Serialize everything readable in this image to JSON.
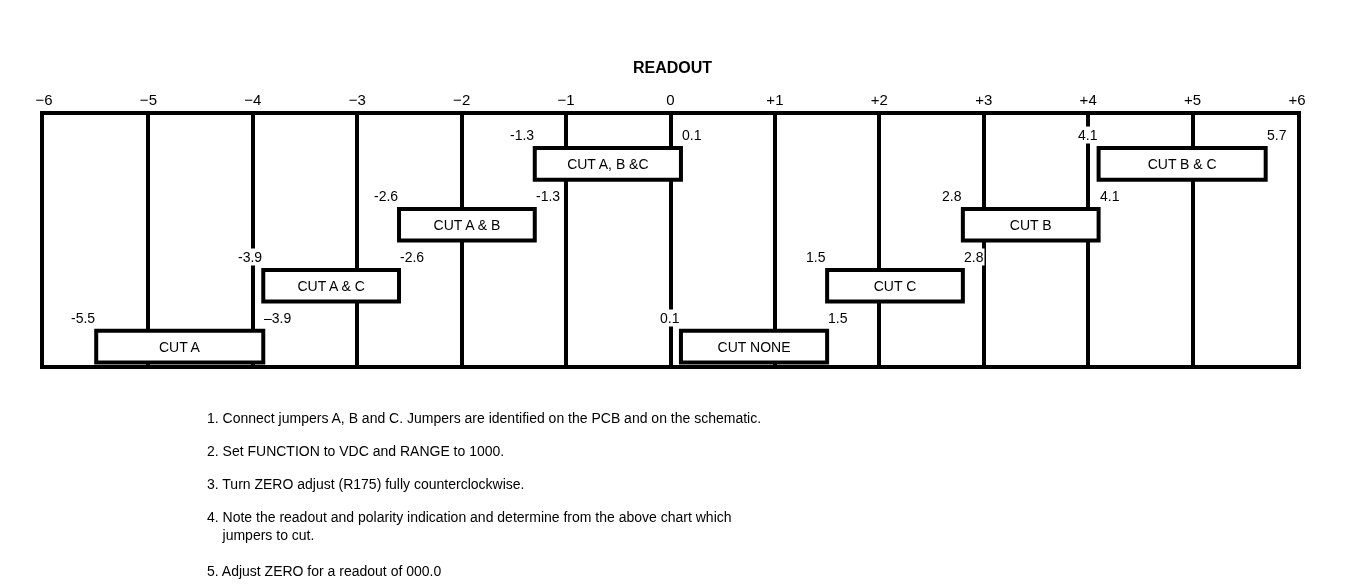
{
  "chart_data": {
    "type": "bar",
    "orientation": "horizontal",
    "title": "READOUT",
    "categories": [
      null,
      null,
      null,
      null
    ],
    "series": [
      {
        "color": "#ffffff",
        "base": [
          -1.3,
          -2.6,
          -3.9,
          -5.5
        ],
        "values": [
          1.4,
          1.3,
          1.3,
          1.6
        ],
        "value_labels": [
          "CUT A, B &C",
          "CUT A & B",
          "CUT A & C",
          "CUT A"
        ]
      },
      {
        "color": "#ffffff",
        "base": [
          4.1,
          2.8,
          1.5,
          0.1
        ],
        "values": [
          1.6,
          1.3,
          1.3,
          1.4
        ],
        "value_labels": [
          "CUT B & C",
          "CUT B",
          "CUT C",
          "CUT NONE"
        ]
      }
    ],
    "xlim": [
      -6,
      6
    ],
    "xticks": [
      {
        "value": -6,
        "label": "−6"
      },
      {
        "value": -5,
        "label": "−5"
      },
      {
        "value": -4,
        "label": "−4"
      },
      {
        "value": -3,
        "label": "−3"
      },
      {
        "value": -2,
        "label": "−2"
      },
      {
        "value": -1,
        "label": "−1"
      },
      0,
      {
        "value": 1,
        "label": "+1"
      },
      {
        "value": 2,
        "label": "+2"
      },
      {
        "value": 3,
        "label": "+3"
      },
      {
        "value": 4,
        "label": "+4"
      },
      {
        "value": 5,
        "label": "+5"
      },
      {
        "value": 6,
        "label": "+6"
      }
    ],
    "grid": "x",
    "tick_labels": "x",
    "annotations": [
      "-1.3",
      "0.1",
      "-2.6",
      "-1.3",
      "-3.9",
      "-2.6",
      "-5.5",
      "–3.9",
      "4.1",
      "5.7",
      "2.8",
      "4.1",
      "1.5",
      "2.8",
      "0.1",
      "1.5",
      "1. Connect jumpers A, B and C. Jumpers are identified on the PCB and on the schematic.",
      "2. Set FUNCTION to VDC and RANGE to 1000.",
      "3. Turn ZERO adjust (R175) fully counterclockwise.",
      "4. Note the readout and polarity indication and determine from the above chart which\n    jumpers to cut.",
      "5. Adjust ZERO for a readout of 000.0"
    ]
  }
}
